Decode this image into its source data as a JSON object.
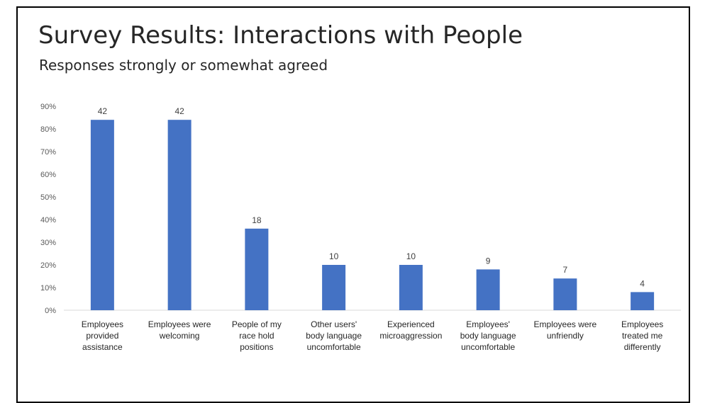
{
  "chart_data": {
    "type": "bar",
    "title": "Survey Results: Interactions with People",
    "subtitle": "Responses strongly or somewhat agreed",
    "categories": [
      [
        "Employees",
        "provided",
        "assistance"
      ],
      [
        "Employees were",
        "welcoming"
      ],
      [
        "People of my",
        "race hold",
        "positions"
      ],
      [
        "Other users'",
        "body language",
        "uncomfortable"
      ],
      [
        "Experienced",
        "microaggression"
      ],
      [
        "Employees'",
        "body language",
        "uncomfortable"
      ],
      [
        "Employees were",
        "unfriendly"
      ],
      [
        "Employees",
        "treated me",
        "differently"
      ]
    ],
    "values": [
      84,
      84,
      36,
      20,
      20,
      18,
      14,
      8
    ],
    "data_labels": [
      "42",
      "42",
      "18",
      "10",
      "10",
      "9",
      "7",
      "4"
    ],
    "ylim": [
      0,
      90
    ],
    "yticks": [
      "0%",
      "10%",
      "20%",
      "30%",
      "40%",
      "50%",
      "60%",
      "70%",
      "80%",
      "90%"
    ],
    "xlabel": "",
    "ylabel": "",
    "legend": "none",
    "grid": false,
    "colors": {
      "bar": "#4472c4",
      "text": "#262626",
      "axis": "#d9d9d9"
    }
  }
}
